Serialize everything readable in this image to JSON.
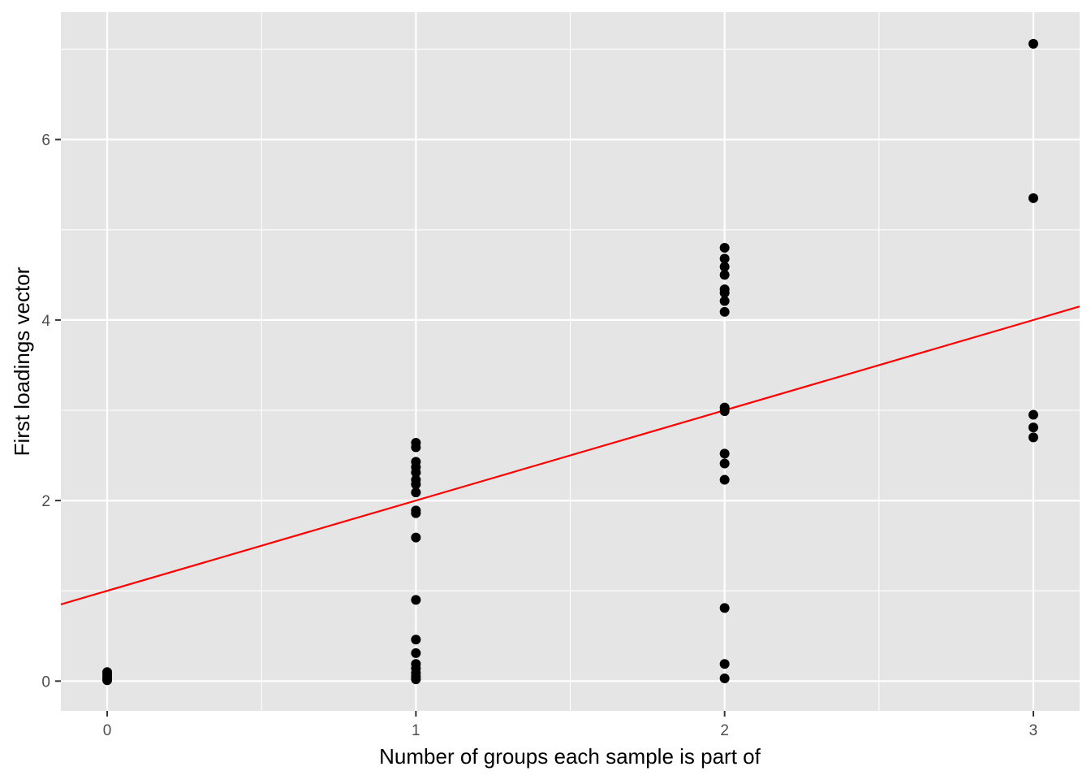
{
  "chart_data": {
    "type": "scatter",
    "title": "",
    "xlabel": "Number of groups each sample is part of",
    "ylabel": "First loadings vector",
    "xlim": [
      -0.15,
      3.15
    ],
    "ylim": [
      -0.33,
      7.41
    ],
    "x_ticks": [
      0,
      1,
      2,
      3
    ],
    "y_ticks": [
      0,
      2,
      4,
      6
    ],
    "grid": true,
    "panel_background": "#E5E5E5",
    "point_color": "#000000",
    "line_color": "#FF0000",
    "fit_line": {
      "intercept": 1,
      "slope": 1
    },
    "points": [
      {
        "x": 0,
        "y": 0.1
      },
      {
        "x": 0,
        "y": 0.07
      },
      {
        "x": 0,
        "y": 0.04
      },
      {
        "x": 0,
        "y": 0.02
      },
      {
        "x": 0,
        "y": 0.01
      },
      {
        "x": 1,
        "y": 2.64
      },
      {
        "x": 1,
        "y": 2.59
      },
      {
        "x": 1,
        "y": 2.43
      },
      {
        "x": 1,
        "y": 2.37
      },
      {
        "x": 1,
        "y": 2.31
      },
      {
        "x": 1,
        "y": 2.23
      },
      {
        "x": 1,
        "y": 2.18
      },
      {
        "x": 1,
        "y": 2.09
      },
      {
        "x": 1,
        "y": 1.89
      },
      {
        "x": 1,
        "y": 1.86
      },
      {
        "x": 1,
        "y": 1.59
      },
      {
        "x": 1,
        "y": 0.9
      },
      {
        "x": 1,
        "y": 0.46
      },
      {
        "x": 1,
        "y": 0.31
      },
      {
        "x": 1,
        "y": 0.19
      },
      {
        "x": 1,
        "y": 0.14
      },
      {
        "x": 1,
        "y": 0.09
      },
      {
        "x": 1,
        "y": 0.05
      },
      {
        "x": 1,
        "y": 0.02
      },
      {
        "x": 2,
        "y": 4.8
      },
      {
        "x": 2,
        "y": 4.68
      },
      {
        "x": 2,
        "y": 4.59
      },
      {
        "x": 2,
        "y": 4.5
      },
      {
        "x": 2,
        "y": 4.34
      },
      {
        "x": 2,
        "y": 4.3
      },
      {
        "x": 2,
        "y": 4.21
      },
      {
        "x": 2,
        "y": 4.09
      },
      {
        "x": 2,
        "y": 3.03
      },
      {
        "x": 2,
        "y": 2.99
      },
      {
        "x": 2,
        "y": 2.52
      },
      {
        "x": 2,
        "y": 2.41
      },
      {
        "x": 2,
        "y": 2.23
      },
      {
        "x": 2,
        "y": 0.81
      },
      {
        "x": 2,
        "y": 0.19
      },
      {
        "x": 2,
        "y": 0.03
      },
      {
        "x": 3,
        "y": 7.06
      },
      {
        "x": 3,
        "y": 5.35
      },
      {
        "x": 3,
        "y": 2.95
      },
      {
        "x": 3,
        "y": 2.81
      },
      {
        "x": 3,
        "y": 2.7
      }
    ]
  }
}
